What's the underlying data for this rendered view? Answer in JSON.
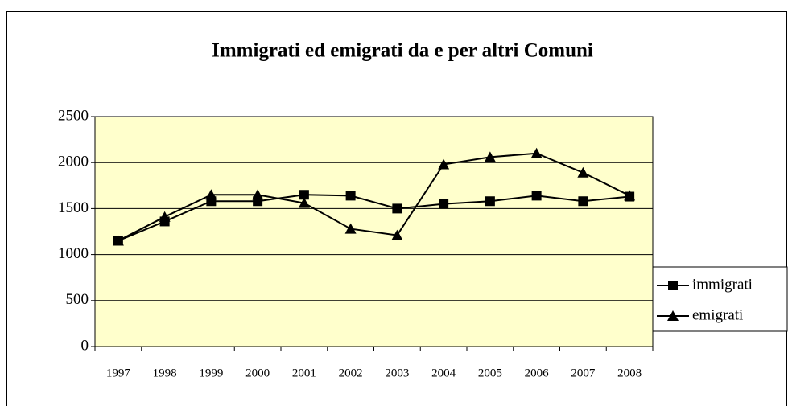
{
  "chart_data": {
    "type": "line",
    "title": "Immigrati ed emigrati da e per altri Comuni",
    "categories": [
      "1997",
      "1998",
      "1999",
      "2000",
      "2001",
      "2002",
      "2003",
      "2004",
      "2005",
      "2006",
      "2007",
      "2008"
    ],
    "series": [
      {
        "name": "immigrati",
        "color": "#000000",
        "marker": "square",
        "values": [
          1150,
          1360,
          1580,
          1580,
          1650,
          1640,
          1500,
          1550,
          1580,
          1640,
          1580,
          1630
        ]
      },
      {
        "name": "emigrati",
        "color": "#000000",
        "marker": "triangle",
        "values": [
          1150,
          1410,
          1650,
          1650,
          1560,
          1280,
          1210,
          1980,
          2060,
          2100,
          1890,
          1640
        ]
      }
    ],
    "ylim": [
      0,
      2500
    ],
    "yticks": [
      0,
      500,
      1000,
      1500,
      2000,
      2500
    ],
    "grid": true,
    "legend": "right"
  }
}
